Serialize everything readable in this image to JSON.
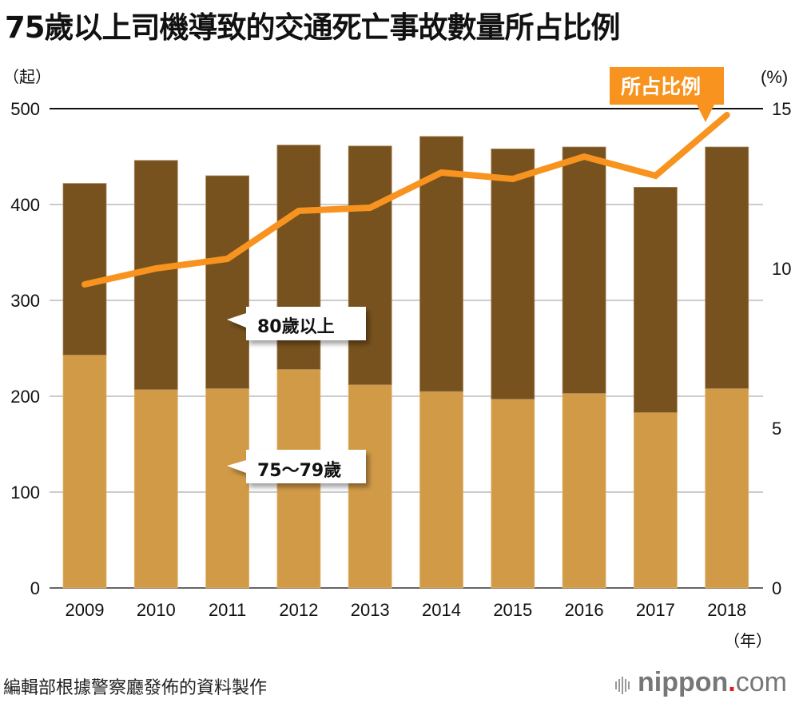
{
  "title": "75歲以上司機導致的交通死亡事故數量所占比例",
  "source": "編輯部根據警察廳發佈的資料製作",
  "logo": {
    "brand": "nippon",
    "dot": ".",
    "tld": "com"
  },
  "chart_data": {
    "type": "bar",
    "title": "75歲以上司機導致的交通死亡事故數量所占比例",
    "stacked": true,
    "categories": [
      "2009",
      "2010",
      "2011",
      "2012",
      "2013",
      "2014",
      "2015",
      "2016",
      "2017",
      "2018"
    ],
    "xlabel": "（年）",
    "ylabel": "（起）",
    "y2label": "(%)",
    "ylim": [
      0,
      500
    ],
    "y2lim": [
      0,
      15
    ],
    "yticks": [
      "0",
      "100",
      "200",
      "300",
      "400",
      "500"
    ],
    "y2ticks": [
      "0",
      "5",
      "10",
      "15"
    ],
    "grid": true,
    "series": [
      {
        "name": "75〜79歲",
        "type": "bar",
        "color": "#d19a47",
        "values": [
          243,
          207,
          208,
          228,
          212,
          205,
          197,
          203,
          183,
          208
        ]
      },
      {
        "name": "80歲以上",
        "type": "bar",
        "color": "#77521e",
        "values": [
          179,
          239,
          222,
          234,
          249,
          266,
          261,
          257,
          235,
          252
        ]
      },
      {
        "name": "所占比例",
        "type": "line",
        "axis": "right",
        "color": "#f7931e",
        "values": [
          9.5,
          10.0,
          10.3,
          11.8,
          11.9,
          13.0,
          12.8,
          13.5,
          12.9,
          14.8
        ]
      }
    ],
    "annotations": {
      "older": "80歲以上",
      "younger": "75〜79歲",
      "ratio": "所占比例"
    }
  }
}
